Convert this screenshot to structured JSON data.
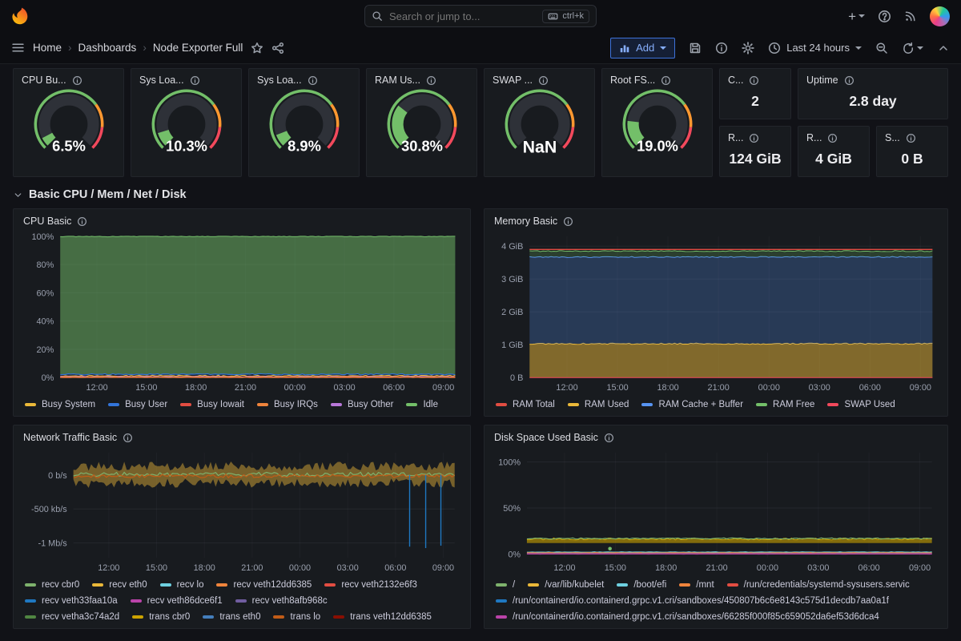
{
  "topnav": {
    "search_placeholder": "Search or jump to...",
    "search_shortcut": "ctrl+k",
    "plus_label": "+"
  },
  "breadcrumbs": {
    "home": "Home",
    "section": "Dashboards",
    "current": "Node Exporter Full"
  },
  "toolbar": {
    "add_label": "Add",
    "time_range": "Last 24 hours"
  },
  "section_row": {
    "title": "Basic CPU / Mem / Net / Disk"
  },
  "colors": {
    "accent_blue": "#3d71d9",
    "gauge_green": "#73bf69",
    "gauge_orange": "#ff9830",
    "gauge_red": "#f2495c",
    "panel_bg": "#181b1f",
    "page_bg": "#111217"
  },
  "gauges": [
    {
      "title": "CPU Bu...",
      "value": "6.5%",
      "percent": 6.5
    },
    {
      "title": "Sys Loa...",
      "value": "10.3%",
      "percent": 10.3
    },
    {
      "title": "Sys Loa...",
      "value": "8.9%",
      "percent": 8.9
    },
    {
      "title": "RAM Us...",
      "value": "30.8%",
      "percent": 30.8
    },
    {
      "title": "SWAP ...",
      "value": "NaN",
      "percent": null
    },
    {
      "title": "Root FS...",
      "value": "19.0%",
      "percent": 19.0
    }
  ],
  "stats": [
    {
      "title": "C...",
      "value": "2"
    },
    {
      "title": "Uptime",
      "value": "2.8 day"
    },
    {
      "title": "R...",
      "value": "124 GiB"
    },
    {
      "title": "R...",
      "value": "4 GiB"
    },
    {
      "title": "S...",
      "value": "0 B"
    }
  ],
  "chart_data": [
    {
      "type": "area",
      "title": "CPU Basic",
      "unit": "percent",
      "x_ticks": [
        "12:00",
        "15:00",
        "18:00",
        "21:00",
        "00:00",
        "03:00",
        "06:00",
        "09:00"
      ],
      "y_ticks": [
        {
          "label": "100%",
          "value": 100
        },
        {
          "label": "80%",
          "value": 80
        },
        {
          "label": "60%",
          "value": 60
        },
        {
          "label": "40%",
          "value": 40
        },
        {
          "label": "20%",
          "value": 20
        },
        {
          "label": "0%",
          "value": 0
        }
      ],
      "y_range": [
        0,
        100
      ],
      "margin_left": 48,
      "legend_rows": [
        [
          {
            "label": "Busy System",
            "color": "#eab839"
          },
          {
            "label": "Busy User",
            "color": "#3274d9"
          },
          {
            "label": "Busy Iowait",
            "color": "#e24d42"
          },
          {
            "label": "Busy IRQs",
            "color": "#ef843c"
          },
          {
            "label": "Busy Other",
            "color": "#b877d9"
          },
          {
            "label": "Idle",
            "color": "#73bf69"
          }
        ]
      ],
      "series": [
        {
          "name": "Idle",
          "style": "band",
          "from": 2.4,
          "to": 100,
          "color": "#73bf69",
          "opacity": 0.5,
          "jitter": 0.8,
          "approx_value": 97.3
        },
        {
          "name": "Busy User",
          "style": "line",
          "value": 2.3,
          "color": "#3274d9",
          "jitter": 0.8
        },
        {
          "name": "Busy System",
          "style": "line",
          "value": 1.2,
          "color": "#eab839",
          "jitter": 0.8
        },
        {
          "name": "Busy Other",
          "style": "line",
          "value": 0.6,
          "color": "#b877d9",
          "jitter": 0.3
        },
        {
          "name": "Busy Iowait",
          "style": "line",
          "value": 0.3,
          "color": "#e24d42",
          "jitter": 0.3
        },
        {
          "name": "Busy IRQs",
          "style": "line",
          "value": 0.1,
          "color": "#ef843c",
          "jitter": 0.15
        }
      ]
    },
    {
      "type": "area",
      "title": "Memory Basic",
      "unit": "GiB",
      "x_ticks": [
        "12:00",
        "15:00",
        "18:00",
        "21:00",
        "00:00",
        "03:00",
        "06:00",
        "09:00"
      ],
      "y_ticks": [
        {
          "label": "4 GiB",
          "value": 4
        },
        {
          "label": "3 GiB",
          "value": 3
        },
        {
          "label": "2 GiB",
          "value": 2
        },
        {
          "label": "1 GiB",
          "value": 1
        },
        {
          "label": "0 B",
          "value": 0
        }
      ],
      "y_range": [
        0,
        4.3
      ],
      "margin_left": 46,
      "legend_rows": [
        [
          {
            "label": "RAM Total",
            "color": "#e24d42"
          },
          {
            "label": "RAM Used",
            "color": "#eab839"
          },
          {
            "label": "RAM Cache + Buffer",
            "color": "#5794f2"
          },
          {
            "label": "RAM Free",
            "color": "#73bf69"
          },
          {
            "label": "SWAP Used",
            "color": "#f2495c"
          }
        ]
      ],
      "series": [
        {
          "name": "RAM Used",
          "style": "band",
          "from": 0,
          "to": 1.03,
          "color": "#eab839",
          "opacity": 0.5,
          "jitter": 0.04
        },
        {
          "name": "RAM Cache + Buffer",
          "style": "band",
          "from": 1.03,
          "to": 3.67,
          "color": "#5794f2",
          "opacity": 0.26,
          "jitter": 0.03
        },
        {
          "name": "RAM Free",
          "style": "band",
          "from": 3.67,
          "to": 3.85,
          "color": "#73bf69",
          "opacity": 0.22,
          "jitter": 0.03
        },
        {
          "name": "RAM Total",
          "style": "line",
          "value": 3.9,
          "color": "#e24d42",
          "width": 1.4
        },
        {
          "name": "SWAP Used",
          "style": "line",
          "value": 0,
          "color": "#f2495c",
          "width": 1
        }
      ]
    },
    {
      "type": "line",
      "title": "Network Traffic Basic",
      "unit": "kb/s",
      "x_ticks": [
        "12:00",
        "15:00",
        "18:00",
        "21:00",
        "00:00",
        "03:00",
        "06:00",
        "09:00"
      ],
      "y_ticks": [
        {
          "label": "0 b/s",
          "value": 0
        },
        {
          "label": "-500 kb/s",
          "value": -500
        },
        {
          "label": "-1 Mb/s",
          "value": -1000
        }
      ],
      "y_range": [
        -1220,
        330
      ],
      "margin_left": 64,
      "legend_rows": [
        [
          {
            "label": "recv cbr0",
            "color": "#7eb26d"
          },
          {
            "label": "recv eth0",
            "color": "#eab839"
          },
          {
            "label": "recv lo",
            "color": "#6ed0e0"
          },
          {
            "label": "recv veth12dd6385",
            "color": "#ef843c"
          },
          {
            "label": "recv veth2132e6f3",
            "color": "#e24d42"
          }
        ],
        [
          {
            "label": "recv veth33faa10a",
            "color": "#1f78c1"
          },
          {
            "label": "recv veth86dce6f1",
            "color": "#ba43a9"
          },
          {
            "label": "recv veth8afb968c",
            "color": "#705da0"
          }
        ],
        [
          {
            "label": "recv vetha3c74a2d",
            "color": "#508642"
          },
          {
            "label": "trans cbr0",
            "color": "#cca300"
          },
          {
            "label": "trans eth0",
            "color": "#447ebc"
          },
          {
            "label": "trans lo",
            "color": "#c15c17"
          },
          {
            "label": "trans veth12dd6385",
            "color": "#890f02"
          }
        ]
      ],
      "series": [
        {
          "name": "aggregate traffic noise (all interfaces)",
          "style": "band",
          "from": -120,
          "to": 130,
          "color": "#eab839",
          "opacity": 0.45,
          "jitter": 140,
          "jitter_low": 140,
          "stroke": false
        },
        {
          "name": "recv cbr0",
          "style": "line",
          "value": 10,
          "color": "#7eb26d",
          "jitter": 60
        },
        {
          "name": "trans lo",
          "style": "line",
          "value": -15,
          "color": "#c15c17",
          "jitter": 50
        },
        {
          "name": "recv lo spikes",
          "style": "spikes",
          "color": "#1f78c1",
          "points": [
            {
              "x": 0.882,
              "value": -1055
            },
            {
              "x": 0.924,
              "value": -1075
            },
            {
              "x": 0.964,
              "value": -1040
            }
          ]
        }
      ]
    },
    {
      "type": "line",
      "title": "Disk Space Used Basic",
      "unit": "percent",
      "x_ticks": [
        "12:00",
        "15:00",
        "18:00",
        "21:00",
        "00:00",
        "03:00",
        "06:00",
        "09:00"
      ],
      "y_ticks": [
        {
          "label": "100%",
          "value": 100
        },
        {
          "label": "50%",
          "value": 50
        },
        {
          "label": "0%",
          "value": 0
        }
      ],
      "y_range": [
        -4,
        110
      ],
      "margin_left": 42,
      "legend_rows": [
        [
          {
            "label": "/",
            "color": "#7eb26d"
          },
          {
            "label": "/var/lib/kubelet",
            "color": "#eab839"
          },
          {
            "label": "/boot/efi",
            "color": "#6ed0e0"
          },
          {
            "label": "/mnt",
            "color": "#ef843c"
          },
          {
            "label": "/run/credentials/systemd-sysusers.servic",
            "color": "#e24d42"
          }
        ],
        [
          {
            "label": "/run/containerd/io.containerd.grpc.v1.cri/sandboxes/450807b6c6e8143c575d1decdb7aa0a1f",
            "color": "#1f78c1"
          }
        ],
        [
          {
            "label": "/run/containerd/io.containerd.grpc.v1.cri/sandboxes/66285f000f85c659052da6ef53d6dca4",
            "color": "#ba43a9"
          }
        ]
      ],
      "series": [
        {
          "name": "/var/lib/kubelet",
          "style": "band",
          "from": 12,
          "to": 16.5,
          "color": "#cca300",
          "opacity": 0.6,
          "jitter": 2.2
        },
        {
          "name": "/",
          "style": "line",
          "value": 17,
          "color": "#7eb26d",
          "jitter": 1.2
        },
        {
          "name": "/boot/efi",
          "style": "line",
          "value": 2.3,
          "color": "#6ed0e0",
          "jitter": 0.4
        },
        {
          "name": "/mnt",
          "style": "line",
          "value": 1.5,
          "color": "#ef843c",
          "jitter": 0.3
        },
        {
          "name": "/run/credentials/systemd-sysusers.servic",
          "style": "line",
          "value": 0.8,
          "color": "#e24d42",
          "jitter": 0.2
        },
        {
          "name": "/run/containerd sandbox 450807b6",
          "style": "line",
          "value": 0.4,
          "color": "#1f78c1",
          "jitter": 0.15
        },
        {
          "name": "/run/containerd sandbox 66285f00",
          "style": "line",
          "value": 0.2,
          "color": "#ba43a9",
          "jitter": 0.1
        },
        {
          "name": "blip",
          "style": "points",
          "color": "#73bf69",
          "points": [
            {
              "x": 0.205,
              "value": 6
            }
          ]
        }
      ]
    }
  ]
}
